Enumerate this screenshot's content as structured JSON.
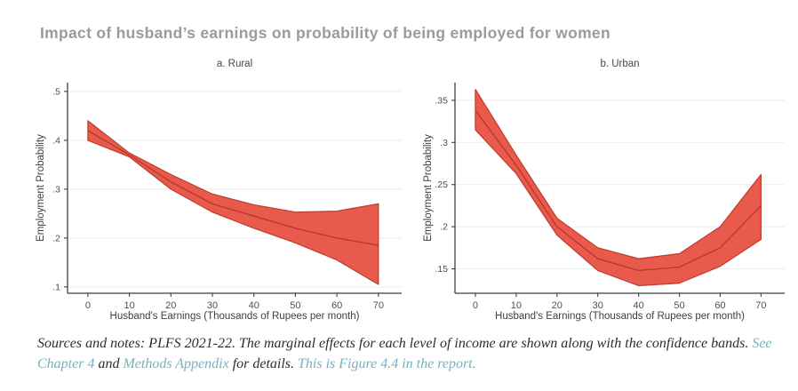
{
  "page": {
    "title": "Impact of husband’s earnings on probability of being employed for women"
  },
  "chart_data": [
    {
      "type": "area",
      "title": "a. Rural",
      "xlabel": "Husband's Earnings (Thousands of Rupees per month)",
      "ylabel": "Employment Probability",
      "x": [
        0,
        10,
        20,
        30,
        40,
        50,
        60,
        70
      ],
      "xticks": [
        0,
        10,
        20,
        30,
        40,
        50,
        60,
        70
      ],
      "yticks": [
        0.1,
        0.2,
        0.3,
        0.4,
        0.5
      ],
      "xlim": [
        -4.9,
        75.6
      ],
      "ylim": [
        0.087,
        0.518
      ],
      "grid": true,
      "legend": "none",
      "series": [
        {
          "name": "Marginal effect",
          "values": [
            0.42,
            0.37,
            0.315,
            0.27,
            0.245,
            0.22,
            0.2,
            0.185
          ]
        },
        {
          "name": "Confidence band upper",
          "values": [
            0.44,
            0.374,
            0.33,
            0.29,
            0.268,
            0.253,
            0.255,
            0.27
          ]
        },
        {
          "name": "Confidence band lower",
          "values": [
            0.4,
            0.366,
            0.3,
            0.253,
            0.22,
            0.19,
            0.155,
            0.105
          ]
        }
      ]
    },
    {
      "type": "area",
      "title": "b. Urban",
      "xlabel": "Husband's Earnings (Thousands of Rupees per month)",
      "ylabel": "Employment Probability",
      "x": [
        0,
        10,
        20,
        30,
        40,
        50,
        60,
        70
      ],
      "xticks": [
        0,
        10,
        20,
        30,
        40,
        50,
        60,
        70
      ],
      "yticks": [
        0.15,
        0.2,
        0.25,
        0.3,
        0.35
      ],
      "xlim": [
        -5.0,
        75.8
      ],
      "ylim": [
        0.121,
        0.371
      ],
      "grid": true,
      "legend": "none",
      "series": [
        {
          "name": "Marginal effect",
          "values": [
            0.338,
            0.273,
            0.2,
            0.162,
            0.148,
            0.152,
            0.175,
            0.225
          ]
        },
        {
          "name": "Confidence band upper",
          "values": [
            0.363,
            0.285,
            0.21,
            0.175,
            0.162,
            0.168,
            0.2,
            0.262
          ]
        },
        {
          "name": "Confidence band lower",
          "values": [
            0.315,
            0.263,
            0.19,
            0.148,
            0.13,
            0.133,
            0.153,
            0.185
          ]
        }
      ]
    }
  ],
  "footnote": {
    "segments": [
      {
        "text": "Sources and notes: PLFS 2021-22. The marginal effects for each level of income are shown along with the confidence bands. ",
        "style": "text"
      },
      {
        "text": "See Chapter 4",
        "style": "link"
      },
      {
        "text": " and ",
        "style": "text"
      },
      {
        "text": "Methods Appendix",
        "style": "link"
      },
      {
        "text": " for details. ",
        "style": "text"
      },
      {
        "text": "This is Figure 4.4 in the report.",
        "style": "link"
      }
    ]
  },
  "colors": {
    "band_fill": "#e85a4c",
    "band_edge": "#c03b2d",
    "effect_line": "#b5372b",
    "title": "#9b9b9b",
    "gridline": "#ececec",
    "axis_line": "#3f3f3f",
    "link": "#76b1c1",
    "note_text": "#2d2d2d"
  }
}
